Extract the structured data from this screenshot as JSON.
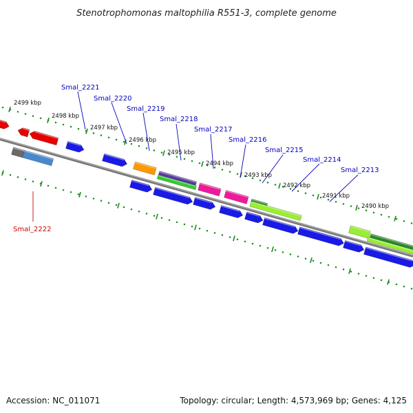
{
  "title": "Stenotrophomonas maltophilia R551-3, complete genome",
  "footer": {
    "accession": "Accession: NC_011071",
    "topology": "Topology: circular; Length: 4,573,969 bp; Genes: 4,125"
  },
  "colors": {
    "backbone": "#808080",
    "tick": "#1a8a1a",
    "label_forward": "#0000bb",
    "label_reverse": "#cc0000",
    "blue": "#1a1ae6",
    "red": "#e60000",
    "orange": "#ff9900",
    "purple": "#5a3aa0",
    "green": "#33cc33",
    "magenta": "#ee1a99",
    "darkgreen": "#2a8a2a",
    "lightgreen": "#99ee33",
    "gray": "#6a6a6a",
    "steelblue": "#4a88cc"
  },
  "kbp_labels": [
    "2499 kbp",
    "2498 kbp",
    "2497 kbp",
    "2496 kbp",
    "2495 kbp",
    "2494 kbp",
    "2493 kbp",
    "2492 kbp",
    "2491 kbp",
    "2490 kbp"
  ],
  "gene_labels": [
    "Smal_2221",
    "Smal_2220",
    "Smal_2219",
    "Smal_2218",
    "Smal_2217",
    "Smal_2216",
    "Smal_2215",
    "Smal_2214",
    "Smal_2213",
    "Smal_2222"
  ]
}
